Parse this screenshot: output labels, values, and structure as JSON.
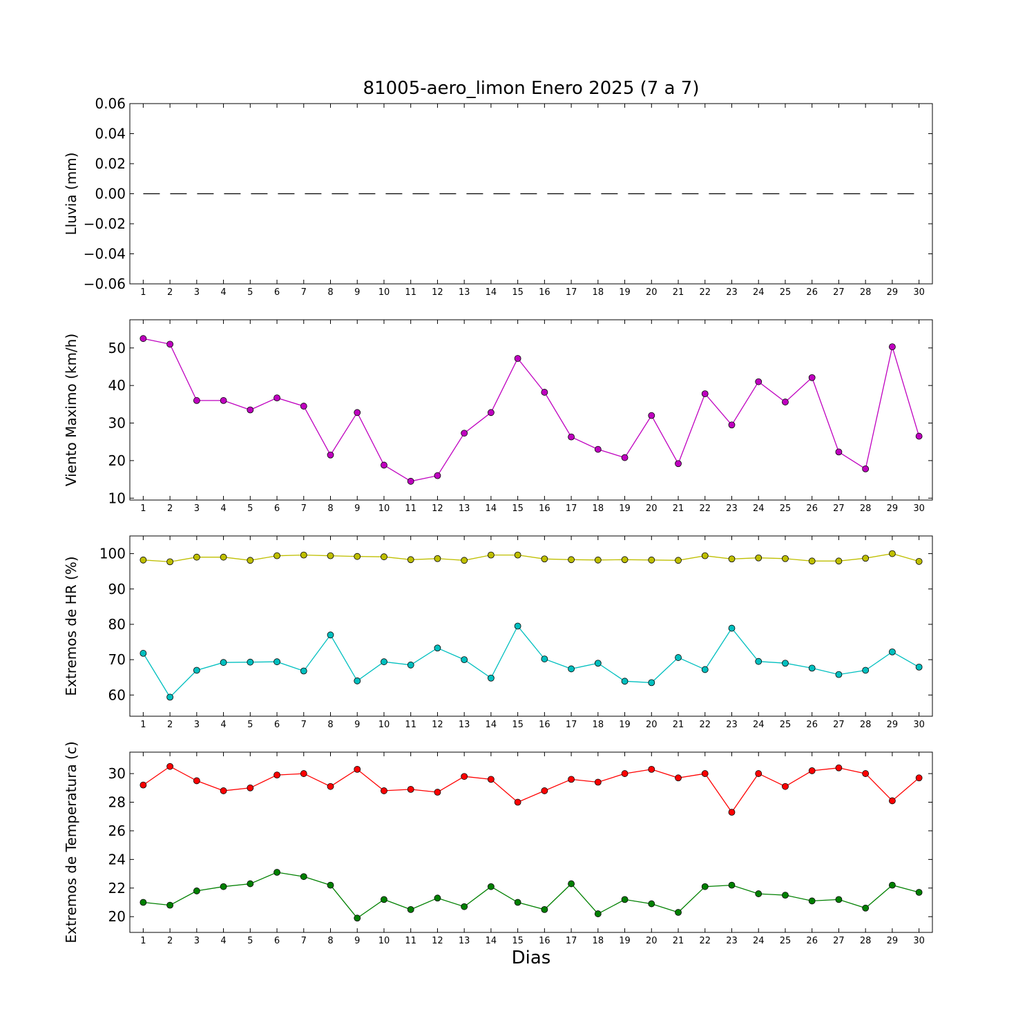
{
  "page": {
    "title": "81005-aero_limon Enero 2025  (7 a 7)",
    "xlabel": "Dias"
  },
  "chart_data": [
    {
      "type": "line",
      "ylabel": "Lluvia (mm)",
      "ylim": [
        -0.06,
        0.06
      ],
      "yticks": [
        0.06,
        0.04,
        0.02,
        0.0,
        -0.02,
        -0.04,
        -0.06
      ],
      "ytick_labels": [
        "0.06",
        "0.04",
        "0.02",
        "0.00",
        "−0.02",
        "−0.04",
        "−0.06"
      ],
      "x": [
        1,
        2,
        3,
        4,
        5,
        6,
        7,
        8,
        9,
        10,
        11,
        12,
        13,
        14,
        15,
        16,
        17,
        18,
        19,
        20,
        21,
        22,
        23,
        24,
        25,
        26,
        27,
        28,
        29,
        30
      ],
      "series": [
        {
          "color": "#000000",
          "line_style": "dashed",
          "marker": "none",
          "values": [
            0,
            0,
            0,
            0,
            0,
            0,
            0,
            0,
            0,
            0,
            0,
            0,
            0,
            0,
            0,
            0,
            0,
            0,
            0,
            0,
            0,
            0,
            0,
            0,
            0,
            0,
            0,
            0,
            0,
            0
          ]
        }
      ]
    },
    {
      "type": "line",
      "ylabel": "Viento Maximo (km/h)",
      "ylim": [
        9.5,
        57.5
      ],
      "yticks": [
        10,
        20,
        30,
        40,
        50
      ],
      "ytick_labels": [
        "10",
        "20",
        "30",
        "40",
        "50"
      ],
      "x": [
        1,
        2,
        3,
        4,
        5,
        6,
        7,
        8,
        9,
        10,
        11,
        12,
        13,
        14,
        15,
        16,
        17,
        18,
        19,
        20,
        21,
        22,
        23,
        24,
        25,
        26,
        27,
        28,
        29,
        30
      ],
      "series": [
        {
          "color": "#bf00bf",
          "marker": "circle",
          "values": [
            52.5,
            51.0,
            36.0,
            36.0,
            33.5,
            36.7,
            34.5,
            21.5,
            32.8,
            18.8,
            14.5,
            16.0,
            27.3,
            32.8,
            47.2,
            38.2,
            26.3,
            23.0,
            20.8,
            32.0,
            19.2,
            37.8,
            29.5,
            41.0,
            35.6,
            42.1,
            22.3,
            17.8,
            50.3,
            26.5
          ]
        }
      ]
    },
    {
      "type": "line",
      "ylabel": "Extremos de HR (%)",
      "ylim": [
        54,
        105
      ],
      "yticks": [
        60,
        70,
        80,
        90,
        100
      ],
      "ytick_labels": [
        "60",
        "70",
        "80",
        "90",
        "100"
      ],
      "x": [
        1,
        2,
        3,
        4,
        5,
        6,
        7,
        8,
        9,
        10,
        11,
        12,
        13,
        14,
        15,
        16,
        17,
        18,
        19,
        20,
        21,
        22,
        23,
        24,
        25,
        26,
        27,
        28,
        29,
        30
      ],
      "series": [
        {
          "color": "#bfbf00",
          "marker": "circle",
          "values": [
            98.2,
            97.7,
            99.0,
            99.0,
            98.1,
            99.4,
            99.6,
            99.4,
            99.2,
            99.1,
            98.3,
            98.6,
            98.1,
            99.6,
            99.6,
            98.5,
            98.3,
            98.2,
            98.3,
            98.2,
            98.1,
            99.4,
            98.5,
            98.8,
            98.6,
            97.9,
            97.9,
            98.7,
            100.0,
            97.8
          ]
        },
        {
          "color": "#00bfbf",
          "marker": "circle",
          "values": [
            71.8,
            59.4,
            67.0,
            69.2,
            69.3,
            69.4,
            66.8,
            77.0,
            64.0,
            69.4,
            68.5,
            73.3,
            70.0,
            64.8,
            79.5,
            70.2,
            67.4,
            69.0,
            63.9,
            63.5,
            70.6,
            67.2,
            78.9,
            69.5,
            69.0,
            67.6,
            65.8,
            67.0,
            72.2,
            67.9
          ]
        }
      ]
    },
    {
      "type": "line",
      "ylabel": "Extremos de Temperatura (c)",
      "ylim": [
        18.9,
        31.5
      ],
      "yticks": [
        20,
        22,
        24,
        26,
        28,
        30
      ],
      "ytick_labels": [
        "20",
        "22",
        "24",
        "26",
        "28",
        "30"
      ],
      "x": [
        1,
        2,
        3,
        4,
        5,
        6,
        7,
        8,
        9,
        10,
        11,
        12,
        13,
        14,
        15,
        16,
        17,
        18,
        19,
        20,
        21,
        22,
        23,
        24,
        25,
        26,
        27,
        28,
        29,
        30
      ],
      "series": [
        {
          "color": "#ff0000",
          "marker": "circle",
          "values": [
            29.2,
            30.5,
            29.5,
            28.8,
            29.0,
            29.9,
            30.0,
            29.1,
            30.3,
            28.8,
            28.9,
            28.7,
            29.8,
            29.6,
            28.0,
            28.8,
            29.6,
            29.4,
            30.0,
            30.3,
            29.7,
            30.0,
            27.3,
            30.0,
            29.1,
            30.2,
            30.4,
            30.0,
            28.1,
            29.7
          ]
        },
        {
          "color": "#008000",
          "marker": "circle",
          "values": [
            21.0,
            20.8,
            21.8,
            22.1,
            22.3,
            23.1,
            22.8,
            22.2,
            19.9,
            21.2,
            20.5,
            21.3,
            20.7,
            22.1,
            21.0,
            20.5,
            22.3,
            20.2,
            21.2,
            20.9,
            20.3,
            22.1,
            22.2,
            21.6,
            21.5,
            21.1,
            21.2,
            20.6,
            22.2,
            21.7
          ]
        }
      ]
    }
  ]
}
